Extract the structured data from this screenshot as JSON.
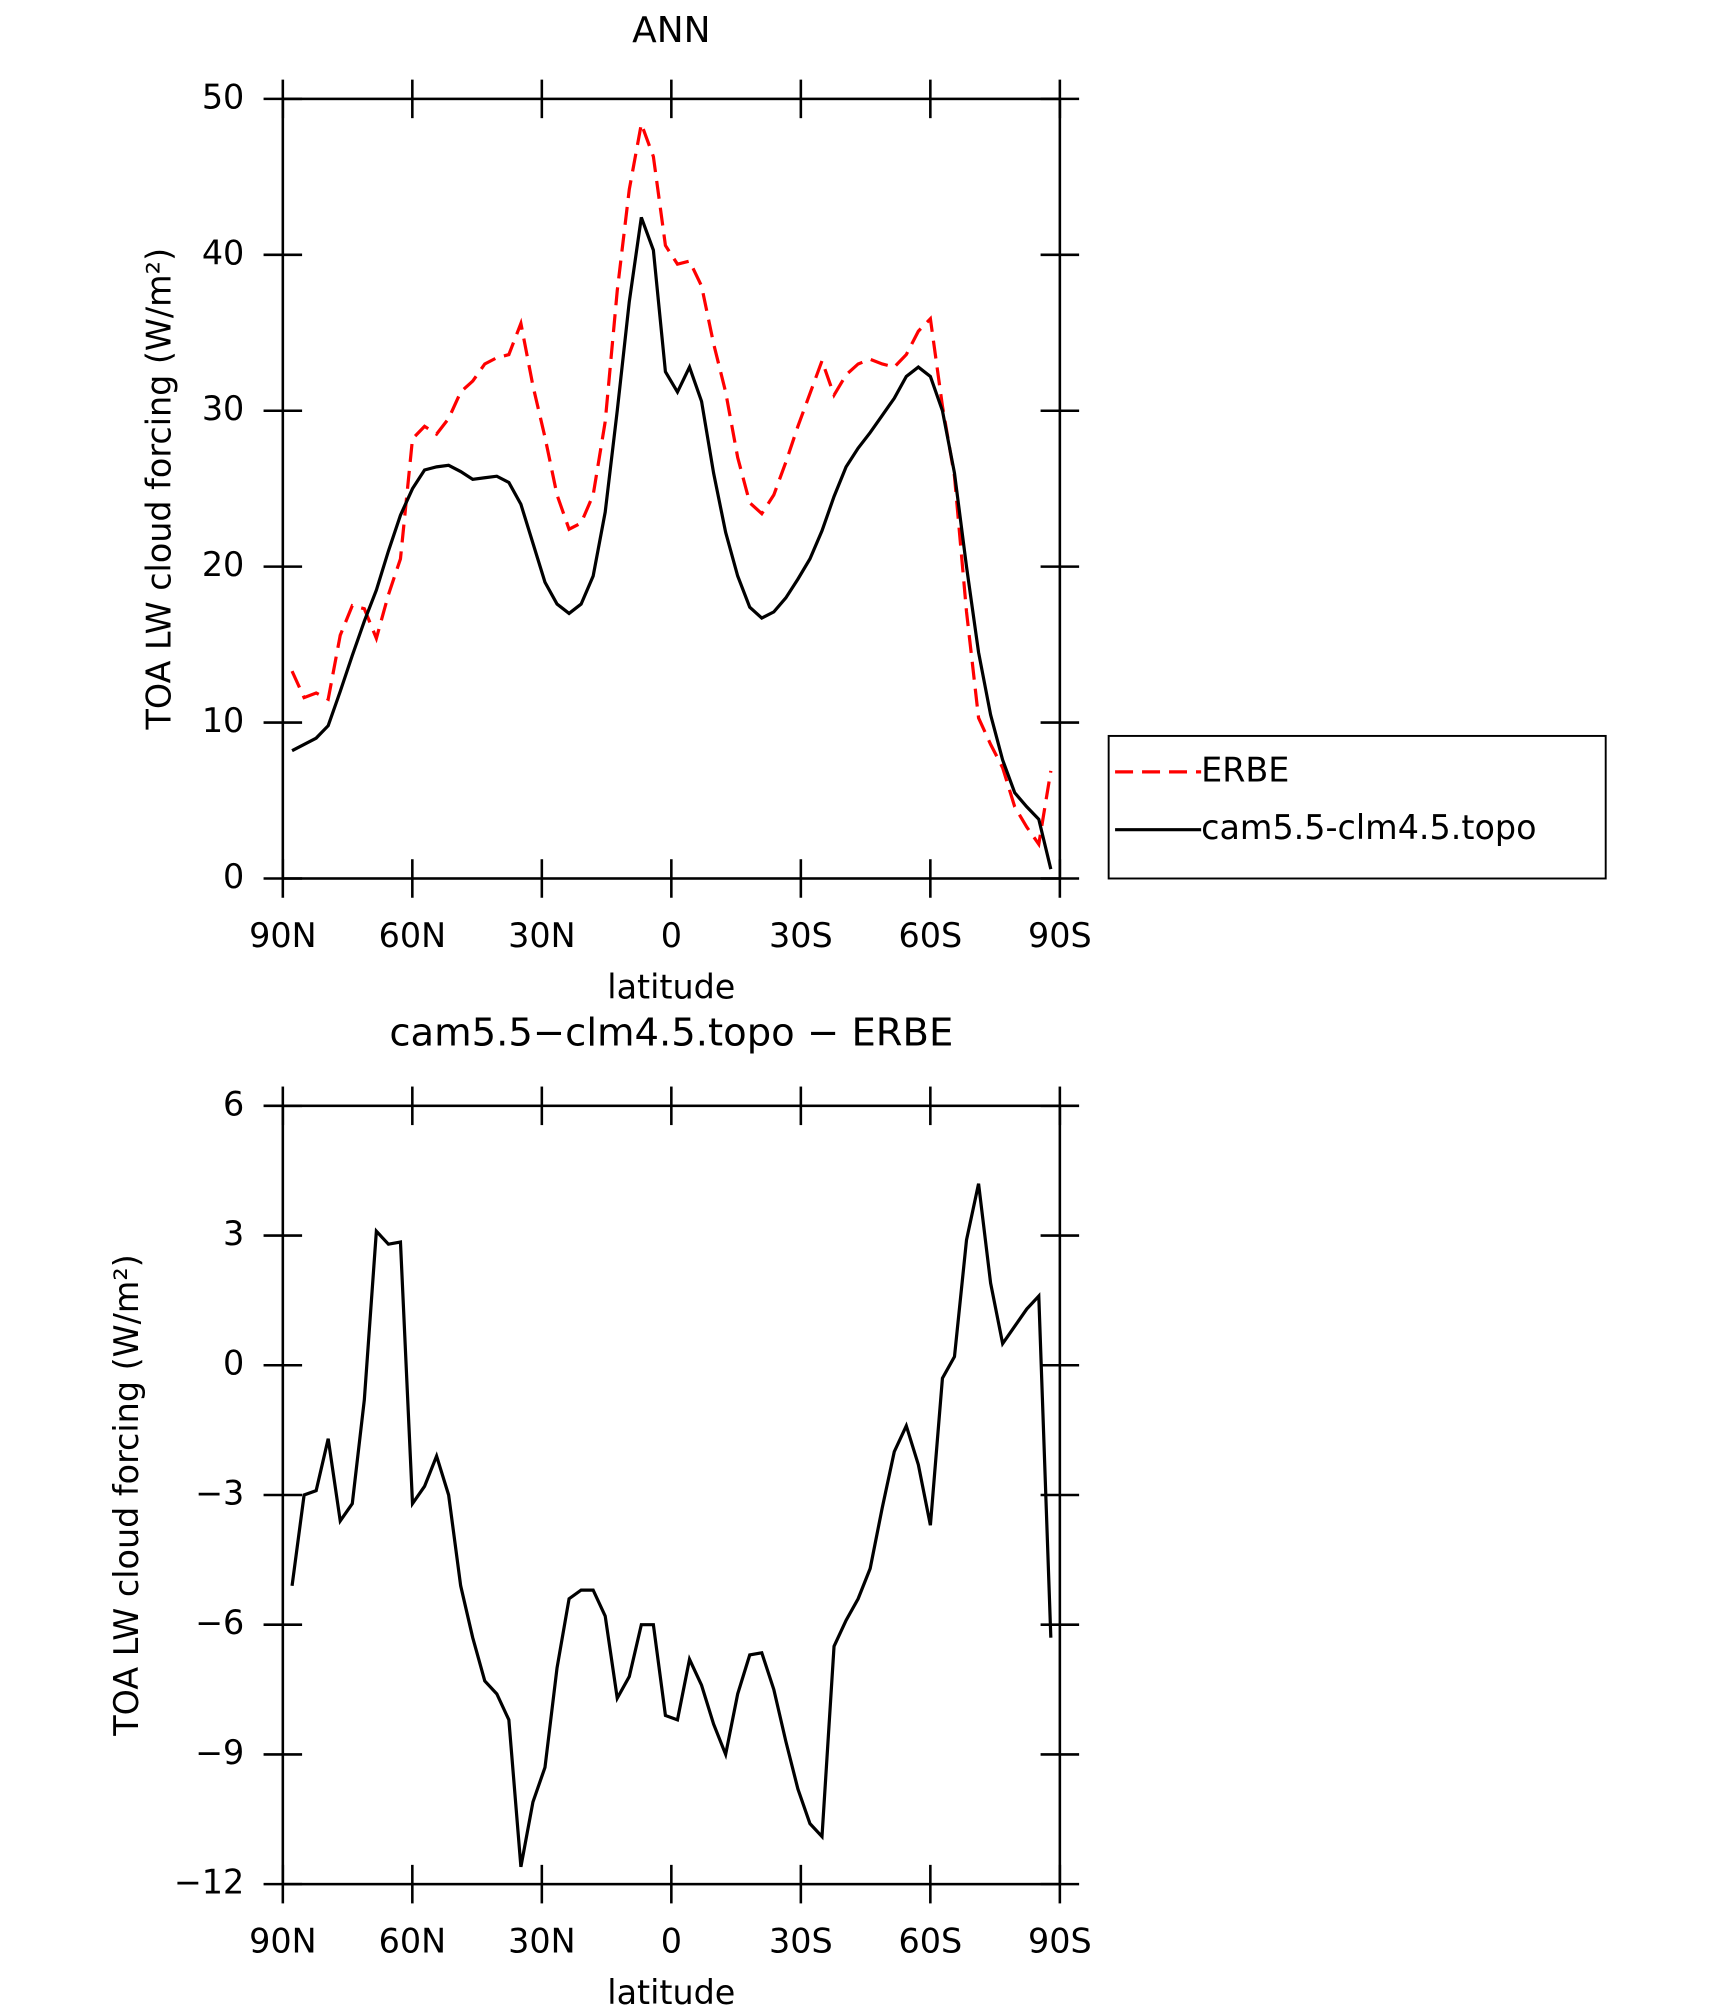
{
  "chart_data": [
    {
      "type": "line",
      "title": "ANN",
      "xlabel": "latitude",
      "ylabel": "TOA LW cloud forcing (W/m²)",
      "x": [
        87.86,
        85.07,
        82.28,
        79.49,
        76.7,
        73.91,
        71.12,
        68.33,
        65.54,
        62.75,
        59.96,
        57.17,
        54.38,
        51.59,
        48.8,
        46.01,
        43.22,
        40.43,
        37.64,
        34.85,
        32.06,
        29.27,
        26.48,
        23.69,
        20.9,
        18.11,
        15.32,
        12.53,
        9.74,
        6.95,
        4.16,
        1.37,
        -1.42,
        -4.21,
        -7,
        -9.79,
        -12.58,
        -15.37,
        -18.16,
        -20.95,
        -23.74,
        -26.53,
        -29.32,
        -32.11,
        -34.9,
        -37.69,
        -40.48,
        -43.27,
        -46.06,
        -48.85,
        -51.64,
        -54.43,
        -57.22,
        -60.01,
        -62.8,
        -65.59,
        -68.38,
        -71.17,
        -73.96,
        -76.75,
        -79.54,
        -82.33,
        -85.12,
        -87.91
      ],
      "series": [
        {
          "name": "ERBE",
          "color": "#ff0000",
          "dash": true,
          "values": [
            13.3,
            11.6,
            11.9,
            11.5,
            15.6,
            17.5,
            17.3,
            15.4,
            18.2,
            20.5,
            28.2,
            29.0,
            28.5,
            29.5,
            31.2,
            31.9,
            33.0,
            33.4,
            33.6,
            35.6,
            31.6,
            28.3,
            24.6,
            22.4,
            22.8,
            24.6,
            29.3,
            37.7,
            44.2,
            48.4,
            46.3,
            40.6,
            39.4,
            39.6,
            38.0,
            34.3,
            31.2,
            27.0,
            24.1,
            23.4,
            24.6,
            26.7,
            29.0,
            31.1,
            33.2,
            31.0,
            32.3,
            33.0,
            33.3,
            33.0,
            32.8,
            33.6,
            35.1,
            35.9,
            30.3,
            25.8,
            17.1,
            10.3,
            8.6,
            7.1,
            4.6,
            3.3,
            2.2,
            6.9
          ]
        },
        {
          "name": "cam5.5-clm4.5.topo",
          "color": "#000000",
          "dash": false,
          "values": [
            8.2,
            8.6,
            9.0,
            9.8,
            12.0,
            14.3,
            16.5,
            18.5,
            21.0,
            23.3,
            25.0,
            26.2,
            26.4,
            26.5,
            26.1,
            25.6,
            25.7,
            25.8,
            25.4,
            24.0,
            21.5,
            19.0,
            17.6,
            17.0,
            17.6,
            19.4,
            23.5,
            30.0,
            37.0,
            42.4,
            40.3,
            32.5,
            31.2,
            32.8,
            30.6,
            26.0,
            22.2,
            19.4,
            17.4,
            16.7,
            17.1,
            18.0,
            19.2,
            20.5,
            22.3,
            24.5,
            26.4,
            27.6,
            28.6,
            29.7,
            30.8,
            32.2,
            32.8,
            32.2,
            30.0,
            26.0,
            20.0,
            14.5,
            10.5,
            7.6,
            5.5,
            4.6,
            3.8,
            0.6
          ]
        }
      ],
      "xlim": [
        90,
        -90
      ],
      "xticks": [
        {
          "value": 90,
          "label": "90N"
        },
        {
          "value": 60,
          "label": "60N"
        },
        {
          "value": 30,
          "label": "30N"
        },
        0,
        {
          "value": -30,
          "label": "30S"
        },
        {
          "value": -60,
          "label": "60S"
        },
        {
          "value": -90,
          "label": "90S"
        }
      ],
      "ylim": [
        0,
        50
      ],
      "yticks": [
        0,
        10,
        20,
        30,
        40,
        50
      ],
      "legend": "outside-right"
    },
    {
      "type": "line",
      "title": "cam5.5−clm4.5.topo − ERBE",
      "xlabel": "latitude",
      "ylabel": "TOA LW cloud forcing (W/m²)",
      "x": [
        87.86,
        85.07,
        82.28,
        79.49,
        76.7,
        73.91,
        71.12,
        68.33,
        65.54,
        62.75,
        59.96,
        57.17,
        54.38,
        51.59,
        48.8,
        46.01,
        43.22,
        40.43,
        37.64,
        34.85,
        32.06,
        29.27,
        26.48,
        23.69,
        20.9,
        18.11,
        15.32,
        12.53,
        9.74,
        6.95,
        4.16,
        1.37,
        -1.42,
        -4.21,
        -7,
        -9.79,
        -12.58,
        -15.37,
        -18.16,
        -20.95,
        -23.74,
        -26.53,
        -29.32,
        -32.11,
        -34.9,
        -37.69,
        -40.48,
        -43.27,
        -46.06,
        -48.85,
        -51.64,
        -54.43,
        -57.22,
        -60.01,
        -62.8,
        -65.59,
        -68.38,
        -71.17,
        -73.96,
        -76.75,
        -79.54,
        -82.33,
        -85.12,
        -87.91
      ],
      "color": "#000000",
      "values": [
        -5.1,
        -3.0,
        -2.9,
        -1.7,
        -3.6,
        -3.2,
        -0.8,
        3.1,
        2.8,
        2.85,
        -3.2,
        -2.8,
        -2.1,
        -3.0,
        -5.1,
        -6.3,
        -7.3,
        -7.6,
        -8.2,
        -11.6,
        -10.1,
        -9.3,
        -7.0,
        -5.4,
        -5.2,
        -5.2,
        -5.8,
        -7.7,
        -7.2,
        -6.0,
        -6.0,
        -8.1,
        -8.2,
        -6.8,
        -7.4,
        -8.3,
        -9.0,
        -7.6,
        -6.7,
        -6.65,
        -7.5,
        -8.7,
        -9.8,
        -10.6,
        -10.9,
        -6.5,
        -5.9,
        -5.4,
        -4.7,
        -3.3,
        -2.0,
        -1.4,
        -2.3,
        -3.7,
        -0.3,
        0.2,
        2.9,
        4.2,
        1.9,
        0.5,
        0.9,
        1.3,
        1.6,
        -6.3
      ],
      "xlim": [
        90,
        -90
      ],
      "xticks": [
        {
          "value": 90,
          "label": "90N"
        },
        {
          "value": 60,
          "label": "60N"
        },
        {
          "value": 30,
          "label": "30N"
        },
        0,
        {
          "value": -30,
          "label": "30S"
        },
        {
          "value": -60,
          "label": "60S"
        },
        {
          "value": -90,
          "label": "90S"
        }
      ],
      "ylim": [
        -12,
        6
      ],
      "yticks": [
        {
          "value": -12,
          "label": "−12"
        },
        {
          "value": -9,
          "label": "−9"
        },
        {
          "value": -6,
          "label": "−6"
        },
        {
          "value": -3,
          "label": "−3"
        },
        0,
        3,
        6
      ]
    }
  ]
}
